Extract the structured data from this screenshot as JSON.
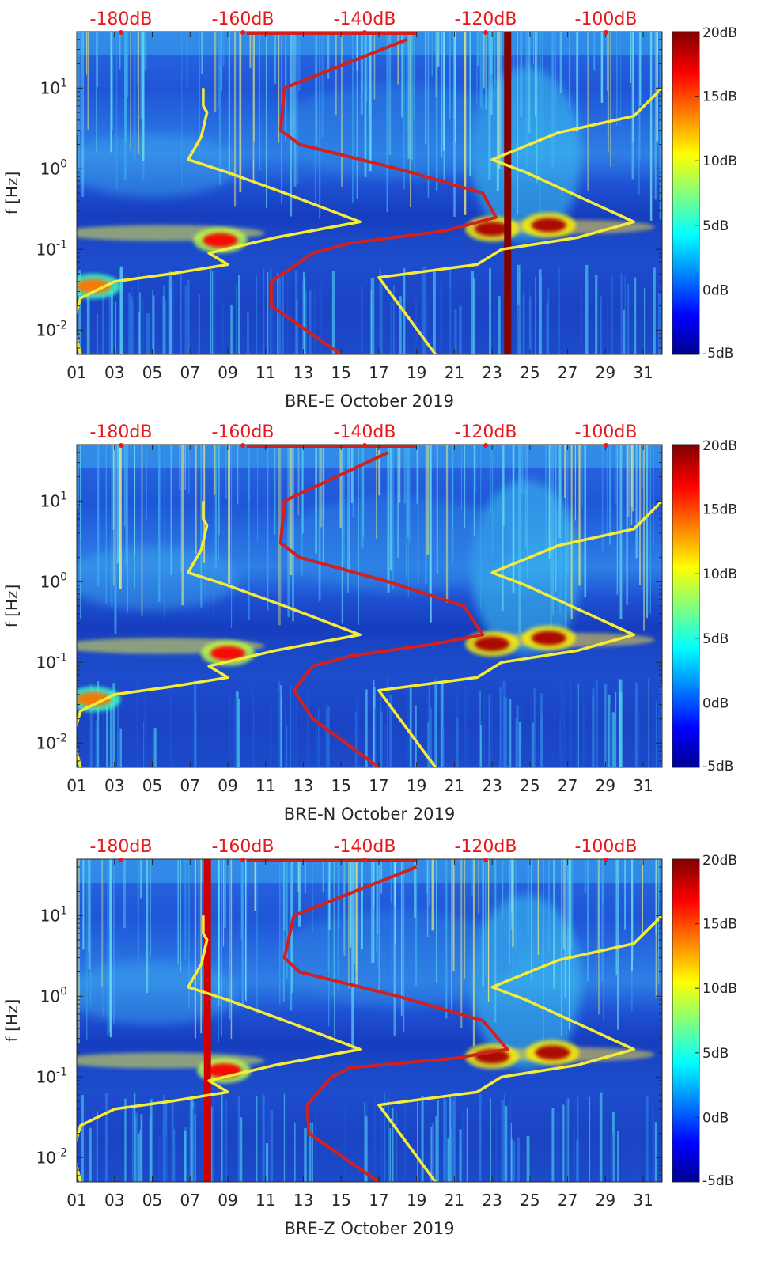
{
  "colors": {
    "accent_red": "#e8191c",
    "curve_yellow": "#f5ec3a",
    "curve_red": "#d0201f",
    "background_blue": "#1e46c8",
    "axis": "#262626"
  },
  "chart_data": [
    {
      "type": "heatmap",
      "title": "",
      "station": "BRE-E",
      "xlabel": "BRE-E October 2019",
      "ylabel": "f [Hz]",
      "x_ticks": [
        "01",
        "03",
        "05",
        "07",
        "09",
        "11",
        "13",
        "15",
        "17",
        "19",
        "21",
        "23",
        "25",
        "27",
        "29",
        "31"
      ],
      "y_ticks": [
        "10^-2",
        "10^0",
        "10^-1",
        "10^1"
      ],
      "y_scale": "log",
      "ylim": [
        0.005,
        50
      ],
      "xlim": [
        1,
        32
      ],
      "top_axis_ticks": [
        "-180dB",
        "-160dB",
        "-140dB",
        "-120dB",
        "-100dB"
      ],
      "colorbar": {
        "ticks": [
          "20dB",
          "15dB",
          "10dB",
          "5dB",
          "0dB",
          "-5dB"
        ],
        "range": [
          -5,
          20
        ],
        "colormap": "jet"
      },
      "hot_spots": [
        {
          "day": 1.9,
          "freq_hz": 0.035,
          "db": 14
        },
        {
          "day": 8.6,
          "freq_hz": 0.13,
          "db": 17
        },
        {
          "day": 23.0,
          "freq_hz": 0.18,
          "db": 19
        },
        {
          "day": 26.0,
          "freq_hz": 0.2,
          "db": 19
        }
      ],
      "vertical_bands": [
        {
          "day": 23.8,
          "db": 20
        }
      ],
      "series": [
        {
          "name": "yellow noise model (low / high)",
          "color": "#f5ec3a",
          "x_day": [
            7.7,
            7.7,
            7.9,
            7.6,
            6.9,
            9.0,
            12.0,
            16.0,
            11.5,
            8.0,
            9.0,
            6.0,
            3.0,
            1.2,
            0.8,
            1.2
          ],
          "y_freq": [
            10,
            6,
            5,
            2.5,
            1.3,
            0.9,
            0.5,
            0.22,
            0.14,
            0.09,
            0.065,
            0.05,
            0.04,
            0.025,
            0.012,
            0.005
          ]
        },
        {
          "name": "yellow noise model (high)",
          "color": "#f5ec3a",
          "x_day": [
            32.0,
            30.5,
            26.5,
            23.0,
            24.8,
            30.5,
            27.5,
            23.5,
            22.2,
            17.0,
            18.5,
            20.0
          ],
          "y_freq": [
            10,
            4.5,
            2.8,
            1.3,
            0.9,
            0.22,
            0.14,
            0.1,
            0.065,
            0.045,
            0.015,
            0.005
          ]
        },
        {
          "name": "red model curve",
          "color": "#d0201f",
          "x_day": [
            18.5,
            12.0,
            11.8,
            12.8,
            18.0,
            22.5,
            23.2,
            20.5,
            15.5,
            13.5,
            11.3,
            11.3,
            15.0
          ],
          "y_freq": [
            40,
            10,
            3,
            2,
            1.0,
            0.5,
            0.25,
            0.17,
            0.12,
            0.09,
            0.04,
            0.02,
            0.005
          ]
        }
      ]
    },
    {
      "type": "heatmap",
      "title": "",
      "station": "BRE-N",
      "xlabel": "BRE-N October 2019",
      "ylabel": "f [Hz]",
      "x_ticks": [
        "01",
        "03",
        "05",
        "07",
        "09",
        "11",
        "13",
        "15",
        "17",
        "19",
        "21",
        "23",
        "25",
        "27",
        "29",
        "31"
      ],
      "y_ticks": [
        "10^-2",
        "10^0",
        "10^-1",
        "10^1"
      ],
      "y_scale": "log",
      "ylim": [
        0.005,
        50
      ],
      "xlim": [
        1,
        32
      ],
      "top_axis_ticks": [
        "-180dB",
        "-160dB",
        "-140dB",
        "-120dB",
        "-100dB"
      ],
      "colorbar": {
        "ticks": [
          "20dB",
          "15dB",
          "10dB",
          "5dB",
          "0dB",
          "-5dB"
        ],
        "range": [
          -5,
          20
        ],
        "colormap": "jet"
      },
      "hot_spots": [
        {
          "day": 1.9,
          "freq_hz": 0.035,
          "db": 14
        },
        {
          "day": 9.0,
          "freq_hz": 0.13,
          "db": 17
        },
        {
          "day": 23.0,
          "freq_hz": 0.17,
          "db": 19
        },
        {
          "day": 26.0,
          "freq_hz": 0.2,
          "db": 19
        }
      ],
      "vertical_bands": [],
      "series": [
        {
          "name": "yellow noise model (low / high)",
          "color": "#f5ec3a",
          "x_day": [
            7.7,
            7.7,
            7.9,
            7.6,
            6.9,
            9.0,
            12.0,
            16.0,
            11.5,
            8.0,
            9.0,
            6.0,
            3.0,
            1.2,
            0.8,
            1.2
          ],
          "y_freq": [
            10,
            6,
            5,
            2.5,
            1.3,
            0.9,
            0.5,
            0.22,
            0.14,
            0.09,
            0.065,
            0.05,
            0.04,
            0.025,
            0.012,
            0.005
          ]
        },
        {
          "name": "yellow noise model (high)",
          "color": "#f5ec3a",
          "x_day": [
            32.0,
            30.5,
            26.5,
            23.0,
            24.8,
            30.5,
            27.5,
            23.5,
            22.2,
            17.0,
            18.5,
            20.0
          ],
          "y_freq": [
            10,
            4.5,
            2.8,
            1.3,
            0.9,
            0.22,
            0.14,
            0.1,
            0.065,
            0.045,
            0.015,
            0.005
          ]
        },
        {
          "name": "red model curve",
          "color": "#d0201f",
          "x_day": [
            17.5,
            12.0,
            11.8,
            12.8,
            17.5,
            21.5,
            22.5,
            20.0,
            15.5,
            13.5,
            12.5,
            13.5,
            17.0
          ],
          "y_freq": [
            40,
            10,
            3,
            2,
            1.0,
            0.5,
            0.22,
            0.17,
            0.12,
            0.09,
            0.045,
            0.02,
            0.005
          ]
        }
      ]
    },
    {
      "type": "heatmap",
      "title": "",
      "station": "BRE-Z",
      "xlabel": "BRE-Z October 2019",
      "ylabel": "f [Hz]",
      "x_ticks": [
        "01",
        "03",
        "05",
        "07",
        "09",
        "11",
        "13",
        "15",
        "17",
        "19",
        "21",
        "23",
        "25",
        "27",
        "29",
        "31"
      ],
      "y_ticks": [
        "10^-2",
        "10^0",
        "10^-1",
        "10^1"
      ],
      "y_scale": "log",
      "ylim": [
        0.005,
        50
      ],
      "xlim": [
        1,
        32
      ],
      "top_axis_ticks": [
        "-180dB",
        "-160dB",
        "-140dB",
        "-120dB",
        "-100dB"
      ],
      "colorbar": {
        "ticks": [
          "20dB",
          "15dB",
          "10dB",
          "5dB",
          "0dB",
          "-5dB"
        ],
        "range": [
          -5,
          20
        ],
        "colormap": "jet"
      },
      "hot_spots": [
        {
          "day": 8.8,
          "freq_hz": 0.12,
          "db": 17
        },
        {
          "day": 23.0,
          "freq_hz": 0.18,
          "db": 19
        },
        {
          "day": 26.2,
          "freq_hz": 0.2,
          "db": 19
        }
      ],
      "vertical_bands": [
        {
          "day": 7.9,
          "db": 18
        }
      ],
      "series": [
        {
          "name": "yellow noise model (low / high)",
          "color": "#f5ec3a",
          "x_day": [
            7.7,
            7.7,
            7.9,
            7.6,
            6.9,
            9.0,
            12.0,
            16.0,
            11.5,
            8.0,
            9.0,
            6.0,
            3.0,
            1.2,
            0.8,
            1.2
          ],
          "y_freq": [
            10,
            6,
            5,
            2.5,
            1.3,
            0.9,
            0.5,
            0.22,
            0.14,
            0.09,
            0.065,
            0.05,
            0.04,
            0.025,
            0.012,
            0.005
          ]
        },
        {
          "name": "yellow noise model (high)",
          "color": "#f5ec3a",
          "x_day": [
            32.0,
            30.5,
            26.5,
            23.0,
            24.8,
            30.5,
            27.5,
            23.5,
            22.2,
            17.0,
            18.5,
            20.0
          ],
          "y_freq": [
            10,
            4.5,
            2.8,
            1.3,
            0.9,
            0.22,
            0.14,
            0.1,
            0.065,
            0.045,
            0.015,
            0.005
          ]
        },
        {
          "name": "red model curve",
          "color": "#d0201f",
          "x_day": [
            19.0,
            12.5,
            12.0,
            12.8,
            18.0,
            22.5,
            23.8,
            21.0,
            15.5,
            14.5,
            13.2,
            13.3,
            17.0
          ],
          "y_freq": [
            40,
            10,
            3,
            2,
            1.0,
            0.5,
            0.22,
            0.17,
            0.13,
            0.1,
            0.045,
            0.02,
            0.005
          ]
        }
      ]
    }
  ]
}
